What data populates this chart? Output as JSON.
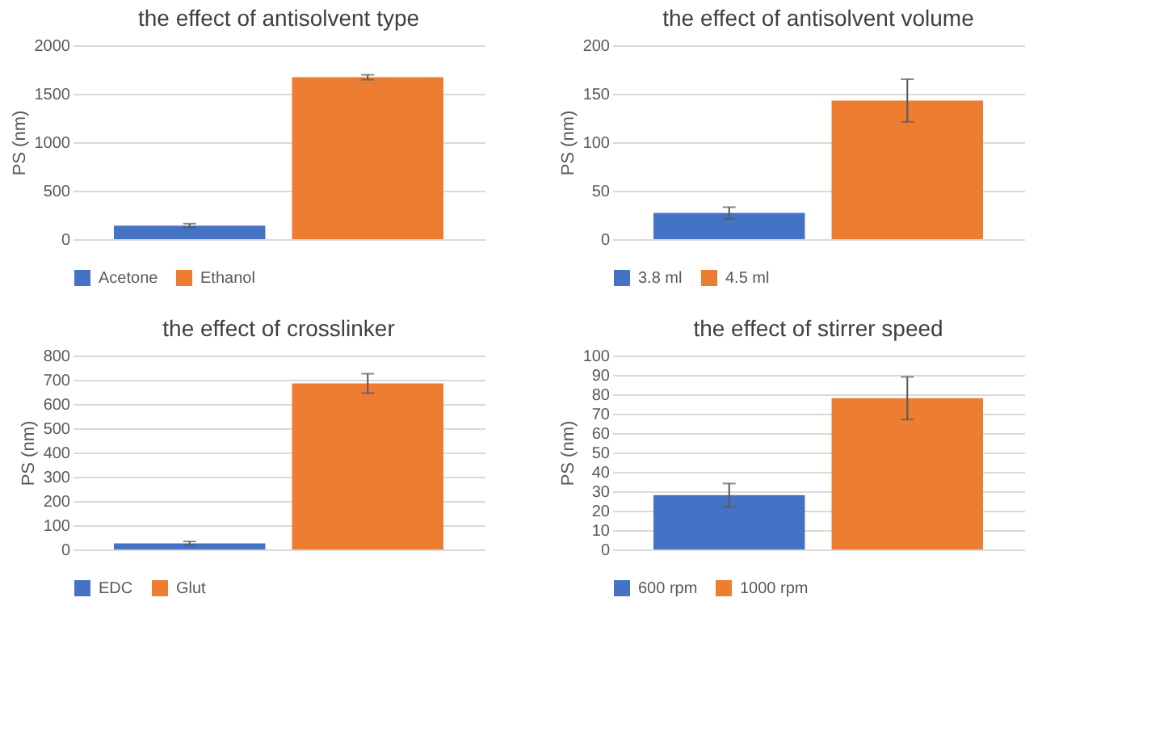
{
  "chart_data": [
    {
      "type": "bar",
      "title": "the effect of antisolvent type",
      "ylabel": "PS (nm)",
      "categories": [
        null
      ],
      "series": [
        {
          "name": "Acetone",
          "color": "#4472c4",
          "values": [
            140
          ],
          "errors": [
            20
          ]
        },
        {
          "name": "Ethanol",
          "color": "#ed7d31",
          "values": [
            1670
          ],
          "errors": [
            25
          ]
        }
      ],
      "ylim": [
        0,
        2000
      ],
      "yticks": [
        0,
        500,
        1000,
        1500,
        2000
      ],
      "grid": "y",
      "legend": "bottom"
    },
    {
      "type": "bar",
      "title": "the effect of antisolvent volume",
      "ylabel": "PS (nm)",
      "categories": [
        null
      ],
      "series": [
        {
          "name": "3.8 ml",
          "color": "#4472c4",
          "values": [
            27
          ],
          "errors": [
            6
          ]
        },
        {
          "name": "4.5 ml",
          "color": "#ed7d31",
          "values": [
            143
          ],
          "errors": [
            22
          ]
        }
      ],
      "ylim": [
        0,
        200
      ],
      "yticks": [
        0,
        50,
        100,
        150,
        200
      ],
      "grid": "y",
      "legend": "bottom"
    },
    {
      "type": "bar",
      "title": "the effect of crosslinker",
      "ylabel": "PS (nm)",
      "categories": [
        null
      ],
      "series": [
        {
          "name": "EDC",
          "color": "#4472c4",
          "values": [
            25
          ],
          "errors": [
            8
          ]
        },
        {
          "name": "Glut",
          "color": "#ed7d31",
          "values": [
            685
          ],
          "errors": [
            40
          ]
        }
      ],
      "ylim": [
        0,
        800
      ],
      "yticks": [
        0,
        100,
        200,
        300,
        400,
        500,
        600,
        700,
        800
      ],
      "grid": "y",
      "legend": "bottom"
    },
    {
      "type": "bar",
      "title": "the effect of stirrer speed",
      "ylabel": "PS (nm)",
      "categories": [
        null
      ],
      "series": [
        {
          "name": "600 rpm",
          "color": "#4472c4",
          "values": [
            28
          ],
          "errors": [
            6
          ]
        },
        {
          "name": "1000 rpm",
          "color": "#ed7d31",
          "values": [
            78
          ],
          "errors": [
            11
          ]
        }
      ],
      "ylim": [
        0,
        100
      ],
      "yticks": [
        0,
        10,
        20,
        30,
        40,
        50,
        60,
        70,
        80,
        90,
        100
      ],
      "grid": "y",
      "legend": "bottom"
    }
  ]
}
